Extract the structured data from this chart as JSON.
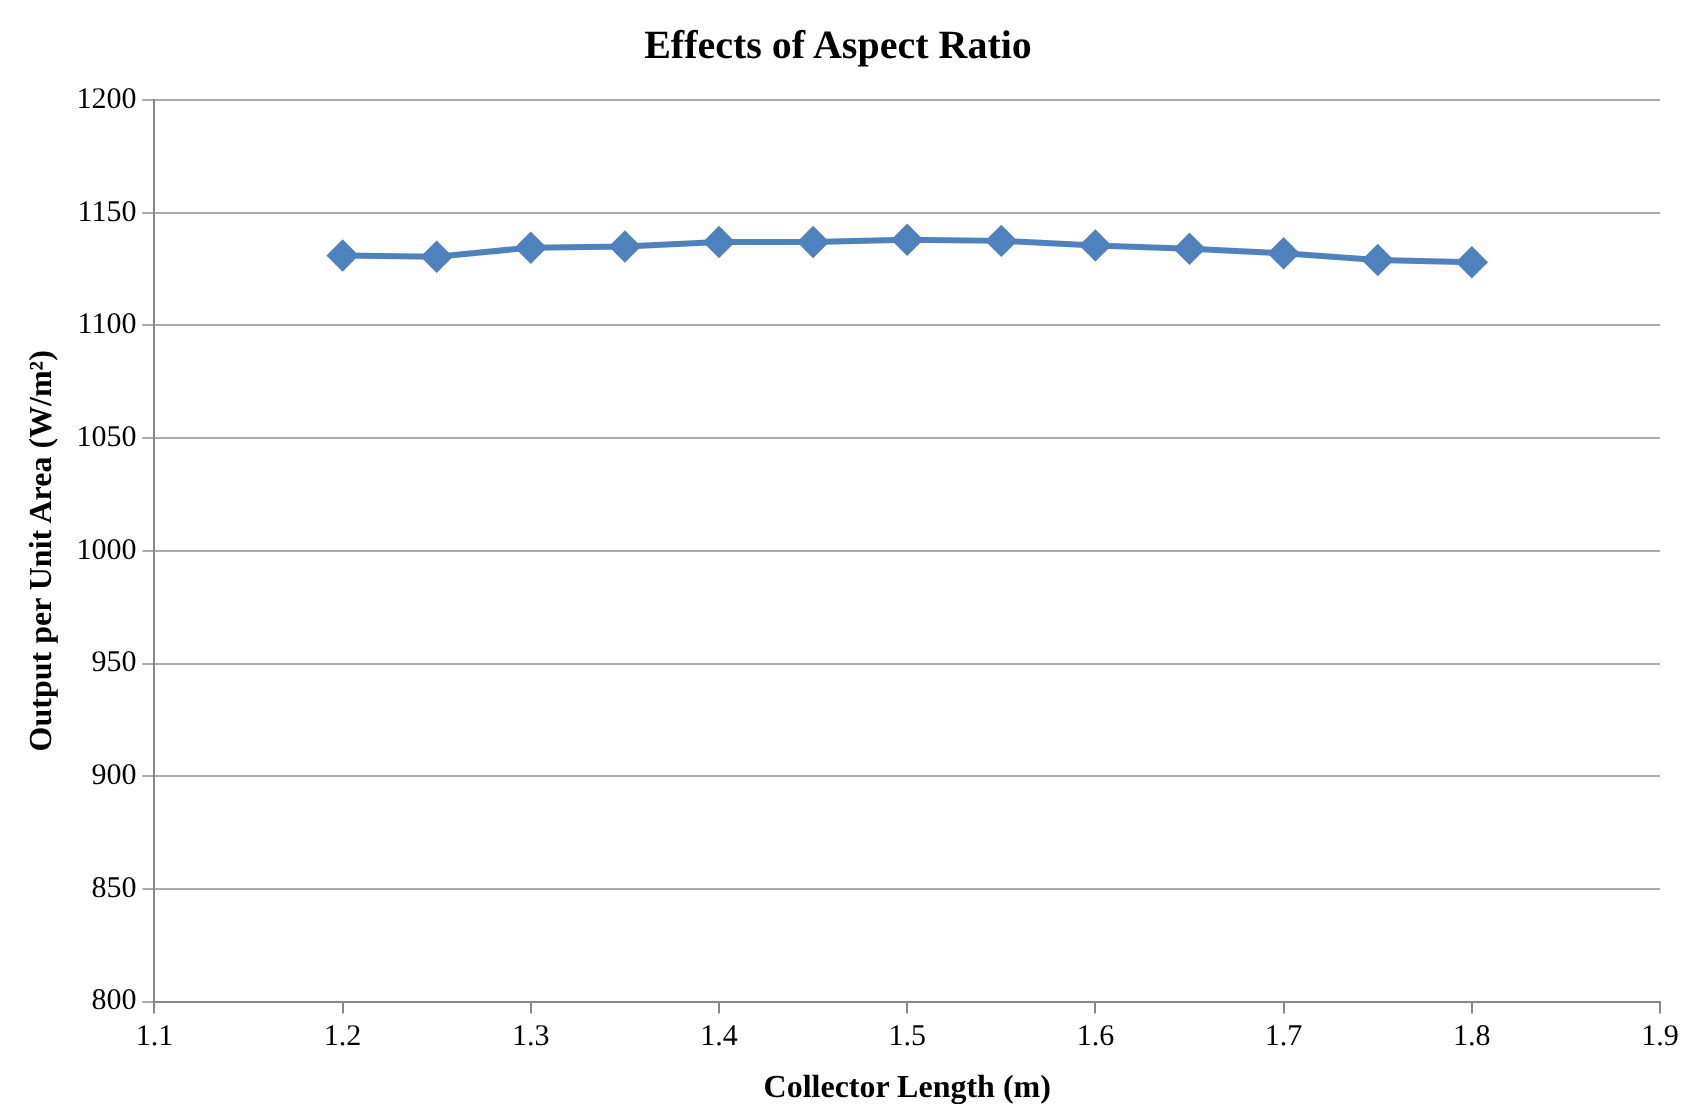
{
  "chart_data": {
    "type": "line",
    "title": "Effects of Aspect Ratio",
    "xlabel": "Collector Length (m)",
    "ylabel": "Output per Unit Area (W/m²)",
    "x": [
      1.2,
      1.25,
      1.3,
      1.35,
      1.4,
      1.45,
      1.5,
      1.55,
      1.6,
      1.65,
      1.7,
      1.75,
      1.8
    ],
    "series": [
      {
        "color": "#4f81bd",
        "values": [
          1131,
          1130.5,
          1134.5,
          1135,
          1137,
          1137,
          1138,
          1137.5,
          1135.5,
          1134,
          1132,
          1129,
          1128
        ]
      }
    ],
    "xlim": [
      1.1,
      1.9
    ],
    "xticks": [
      1.1,
      1.2,
      1.3,
      1.4,
      1.5,
      1.6,
      1.7,
      1.8,
      1.9
    ],
    "ylim": [
      800,
      1200
    ],
    "yticks": [
      800,
      850,
      900,
      950,
      1000,
      1050,
      1100,
      1150,
      1200
    ],
    "grid": "y",
    "legend": false,
    "marker": "diamond",
    "line_style": "solid"
  }
}
